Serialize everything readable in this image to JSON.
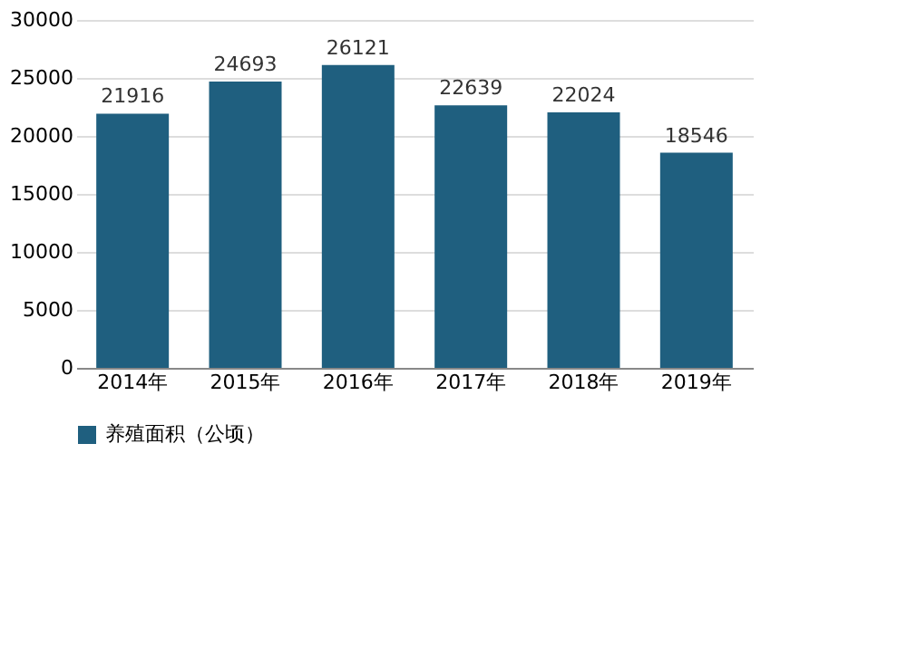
{
  "chart_data": {
    "type": "bar",
    "categories": [
      "2014年",
      "2015年",
      "2016年",
      "2017年",
      "2018年",
      "2019年"
    ],
    "series": [
      {
        "name": "养殖面积（公顷）",
        "color": "#1f5f7f",
        "values": [
          21916,
          24693,
          26121,
          22639,
          22024,
          18546
        ]
      }
    ],
    "ylim": [
      0,
      30000
    ],
    "yticks": [
      0,
      5000,
      10000,
      15000,
      20000,
      25000,
      30000
    ],
    "grid": "y",
    "legend": "bottom",
    "data_labels": true
  }
}
